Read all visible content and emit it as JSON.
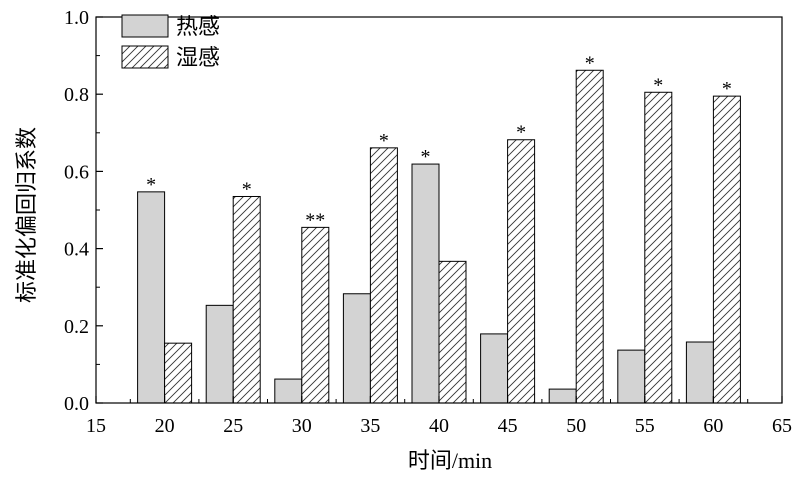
{
  "chart_data": {
    "type": "bar",
    "title": "",
    "xlabel": "时间/min",
    "ylabel": "标准化偏回归系数",
    "xlim": [
      15,
      65
    ],
    "ylim": [
      0,
      1.0
    ],
    "x_ticks": [
      "15",
      "20",
      "25",
      "30",
      "35",
      "40",
      "45",
      "50",
      "55",
      "60",
      "65"
    ],
    "y_ticks": [
      "0.0",
      "0.2",
      "0.4",
      "0.6",
      "0.8",
      "1.0"
    ],
    "categories": [
      20,
      25,
      30,
      35,
      40,
      45,
      50,
      55,
      60
    ],
    "series": [
      {
        "name": "热感",
        "pattern": "solid-gray",
        "color": "#d3d3d3",
        "values": [
          0.547,
          0.253,
          0.062,
          0.283,
          0.619,
          0.179,
          0.036,
          0.137,
          0.158
        ],
        "annotations": [
          "*",
          "",
          "",
          "",
          "*",
          "",
          "",
          "",
          ""
        ]
      },
      {
        "name": "湿感",
        "pattern": "diagonal-hatch",
        "color": "#ffffff",
        "values": [
          0.155,
          0.535,
          0.455,
          0.661,
          0.367,
          0.682,
          0.862,
          0.805,
          0.795
        ],
        "annotations": [
          "",
          "*",
          "**",
          "*",
          "",
          "*",
          "*",
          "*",
          "*"
        ]
      }
    ],
    "legend_position": "top-left",
    "grid": false
  }
}
